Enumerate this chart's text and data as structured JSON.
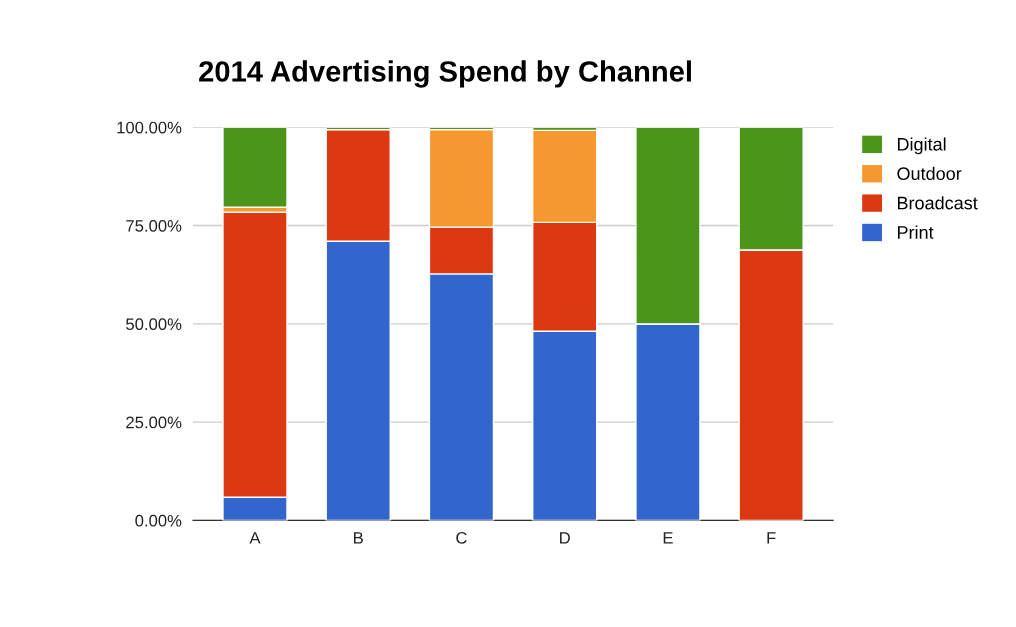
{
  "chart_data": {
    "type": "bar",
    "title": "2014 Advertising Spend by Channel",
    "stacked": true,
    "categories": [
      "A",
      "B",
      "C",
      "D",
      "E",
      "F"
    ],
    "series": [
      {
        "name": "Print",
        "color": "#3366cc",
        "values": [
          5.9,
          71.0,
          62.7,
          48.1,
          50.0,
          0
        ]
      },
      {
        "name": "Broadcast",
        "color": "#dc3912",
        "values": [
          72.5,
          28.4,
          11.9,
          27.7,
          0,
          68.8
        ]
      },
      {
        "name": "Outdoor",
        "color": "#f4982f",
        "values": [
          1.3,
          0,
          24.8,
          23.4,
          0,
          0
        ]
      },
      {
        "name": "Digital",
        "color": "#4a961a",
        "values": [
          20.3,
          0.6,
          0.6,
          0.8,
          50.0,
          31.2
        ]
      }
    ],
    "ylim": [
      0,
      100
    ],
    "yticks": [
      {
        "value": 0,
        "label": "0.00%"
      },
      {
        "value": 25,
        "label": "25.00%"
      },
      {
        "value": 50,
        "label": "50.00%"
      },
      {
        "value": 75,
        "label": "75.00%"
      },
      {
        "value": 100,
        "label": "100.00%"
      }
    ],
    "grid": "y",
    "legend": "right"
  }
}
